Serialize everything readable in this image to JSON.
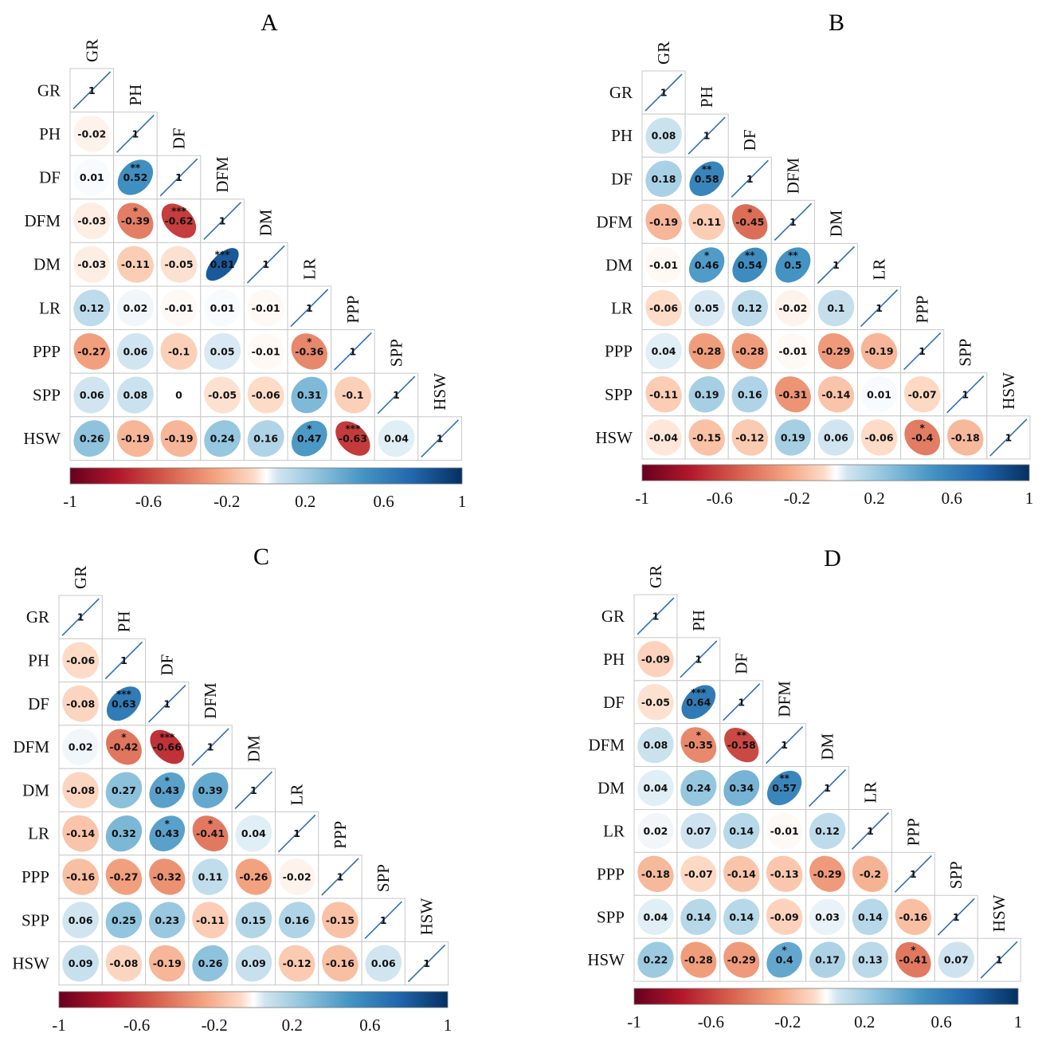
{
  "chart_data": [
    {
      "type": "heatmap",
      "title": "A",
      "variables": [
        "GR",
        "PH",
        "DF",
        "DFM",
        "DM",
        "LR",
        "PPP",
        "SPP",
        "HSW"
      ],
      "matrix": [
        [
          1
        ],
        [
          -0.02,
          1
        ],
        [
          0.01,
          0.52,
          1
        ],
        [
          -0.03,
          -0.39,
          -0.62,
          1
        ],
        [
          -0.03,
          -0.11,
          -0.05,
          0.81,
          1
        ],
        [
          0.12,
          0.02,
          -0.01,
          0.01,
          -0.01,
          1
        ],
        [
          -0.27,
          0.06,
          -0.1,
          0.05,
          -0.01,
          -0.36,
          1
        ],
        [
          0.06,
          0.08,
          0,
          -0.05,
          -0.06,
          0.31,
          -0.1,
          1
        ],
        [
          0.26,
          -0.19,
          -0.19,
          0.24,
          0.16,
          0.47,
          -0.63,
          0.04,
          1
        ]
      ],
      "significance": [
        [
          ""
        ],
        [
          "",
          ""
        ],
        [
          "",
          "**",
          ""
        ],
        [
          "",
          "*",
          "***",
          ""
        ],
        [
          "",
          "",
          "",
          "***",
          ""
        ],
        [
          "",
          "",
          "",
          "",
          "",
          ""
        ],
        [
          "",
          "",
          "",
          "",
          "",
          "*",
          ""
        ],
        [
          "",
          "",
          "",
          "",
          "",
          "",
          "",
          ""
        ],
        [
          "",
          "",
          "",
          "",
          "",
          "*",
          "***",
          "",
          ""
        ]
      ],
      "colorbar": {
        "ticks": [
          "-1",
          "-0.6",
          "-0.2",
          "0.2",
          "0.6",
          "1"
        ],
        "range": [
          -1,
          1
        ]
      }
    },
    {
      "type": "heatmap",
      "title": "B",
      "variables": [
        "GR",
        "PH",
        "DF",
        "DFM",
        "DM",
        "LR",
        "PPP",
        "SPP",
        "HSW"
      ],
      "matrix": [
        [
          1
        ],
        [
          0.08,
          1
        ],
        [
          0.18,
          0.58,
          1
        ],
        [
          -0.19,
          -0.11,
          -0.45,
          1
        ],
        [
          -0.01,
          0.46,
          0.54,
          0.5,
          1
        ],
        [
          -0.06,
          0.05,
          0.12,
          -0.02,
          0.1,
          1
        ],
        [
          0.04,
          -0.28,
          -0.28,
          -0.01,
          -0.29,
          -0.19,
          1
        ],
        [
          -0.11,
          0.19,
          0.16,
          -0.31,
          -0.14,
          0.01,
          -0.07,
          1
        ],
        [
          -0.04,
          -0.15,
          -0.12,
          0.19,
          0.06,
          -0.06,
          -0.4,
          -0.18,
          1
        ]
      ],
      "significance": [
        [
          ""
        ],
        [
          "",
          ""
        ],
        [
          "",
          "**",
          ""
        ],
        [
          "",
          "",
          "*",
          ""
        ],
        [
          "",
          "*",
          "**",
          "**",
          ""
        ],
        [
          "",
          "",
          "",
          "",
          "",
          ""
        ],
        [
          "",
          "",
          "",
          "",
          "",
          "",
          ""
        ],
        [
          "",
          "",
          "",
          "",
          "",
          "",
          "",
          ""
        ],
        [
          "",
          "",
          "",
          "",
          "",
          "",
          "*",
          "",
          ""
        ]
      ],
      "colorbar": {
        "ticks": [
          "-1",
          "-0.6",
          "-0.2",
          "0.2",
          "0.6",
          "1"
        ],
        "range": [
          -1,
          1
        ]
      }
    },
    {
      "type": "heatmap",
      "title": "C",
      "variables": [
        "GR",
        "PH",
        "DF",
        "DFM",
        "DM",
        "LR",
        "PPP",
        "SPP",
        "HSW"
      ],
      "matrix": [
        [
          1
        ],
        [
          -0.06,
          1
        ],
        [
          -0.08,
          0.63,
          1
        ],
        [
          0.02,
          -0.42,
          -0.66,
          1
        ],
        [
          -0.08,
          0.27,
          0.43,
          0.39,
          1
        ],
        [
          -0.14,
          0.32,
          0.43,
          -0.41,
          0.04,
          1
        ],
        [
          -0.16,
          -0.27,
          -0.32,
          0.11,
          -0.26,
          -0.02,
          1
        ],
        [
          0.06,
          0.25,
          0.23,
          -0.11,
          0.15,
          0.16,
          -0.15,
          1
        ],
        [
          0.09,
          -0.08,
          -0.19,
          0.26,
          0.09,
          -0.12,
          -0.16,
          0.06,
          1
        ]
      ],
      "significance": [
        [
          ""
        ],
        [
          "",
          ""
        ],
        [
          "",
          "***",
          ""
        ],
        [
          "",
          "*",
          "***",
          ""
        ],
        [
          "",
          "",
          "*",
          "",
          ""
        ],
        [
          "",
          "",
          "*",
          "*",
          "",
          ""
        ],
        [
          "",
          "",
          "",
          "",
          "",
          "",
          ""
        ],
        [
          "",
          "",
          "",
          "",
          "",
          "",
          "",
          ""
        ],
        [
          "",
          "",
          "",
          "",
          "",
          "",
          "",
          "",
          ""
        ]
      ],
      "colorbar": {
        "ticks": [
          "-1",
          "-0.6",
          "-0.2",
          "0.2",
          "0.6",
          "1"
        ],
        "range": [
          -1,
          1
        ]
      }
    },
    {
      "type": "heatmap",
      "title": "D",
      "variables": [
        "GR",
        "PH",
        "DF",
        "DFM",
        "DM",
        "LR",
        "PPP",
        "SPP",
        "HSW"
      ],
      "matrix": [
        [
          1
        ],
        [
          -0.09,
          1
        ],
        [
          -0.05,
          0.64,
          1
        ],
        [
          0.08,
          -0.35,
          -0.58,
          1
        ],
        [
          0.04,
          0.24,
          0.34,
          0.57,
          1
        ],
        [
          0.02,
          0.07,
          0.14,
          -0.01,
          0.12,
          1
        ],
        [
          -0.18,
          -0.07,
          -0.14,
          -0.13,
          -0.29,
          -0.2,
          1
        ],
        [
          0.04,
          0.14,
          0.14,
          -0.09,
          0.03,
          0.14,
          -0.16,
          1
        ],
        [
          0.22,
          -0.28,
          -0.29,
          0.4,
          0.17,
          0.13,
          -0.41,
          0.07,
          1
        ]
      ],
      "significance": [
        [
          ""
        ],
        [
          "",
          ""
        ],
        [
          "",
          "***",
          ""
        ],
        [
          "",
          "*",
          "**",
          ""
        ],
        [
          "",
          "",
          "",
          "**",
          ""
        ],
        [
          "",
          "",
          "",
          "",
          "",
          ""
        ],
        [
          "",
          "",
          "",
          "",
          "",
          "",
          ""
        ],
        [
          "",
          "",
          "",
          "",
          "",
          "",
          "",
          ""
        ],
        [
          "",
          "",
          "",
          "*",
          "",
          "",
          "*",
          "",
          ""
        ]
      ],
      "colorbar": {
        "ticks": [
          "-1",
          "-0.6",
          "-0.2",
          "0.2",
          "0.6",
          "1"
        ],
        "range": [
          -1,
          1
        ]
      }
    }
  ]
}
